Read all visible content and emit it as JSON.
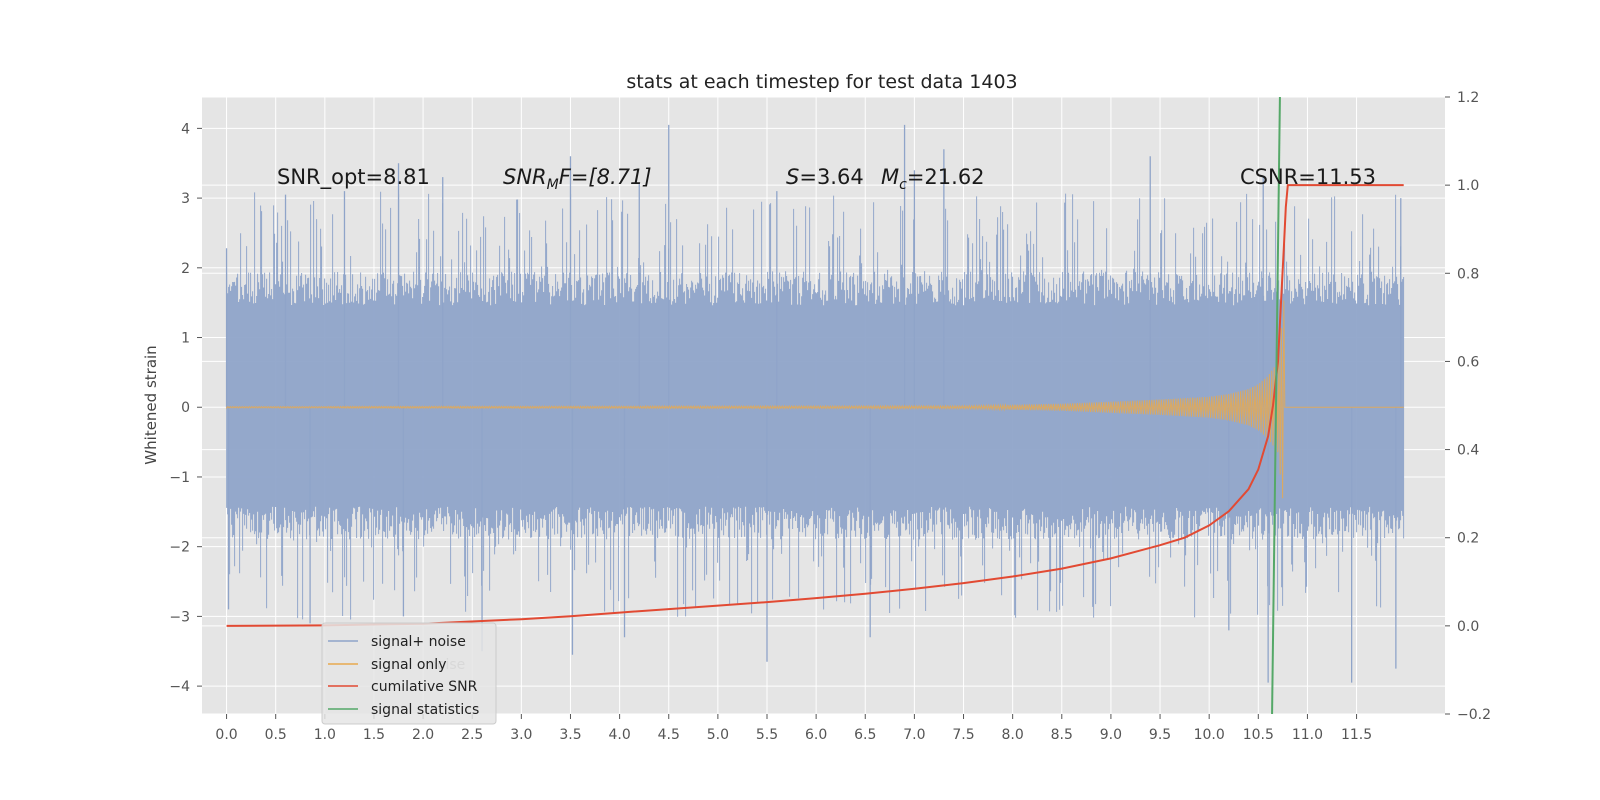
{
  "chart_data": {
    "type": "line",
    "title": "stats at each timestep for test data 1403",
    "ylabel": "Whitened strain",
    "xlim": [
      -0.25,
      12.4
    ],
    "ylim": [
      -4.4,
      4.45
    ],
    "y2lim": [
      -0.2,
      1.2
    ],
    "grid": true,
    "x_ticks": [
      "0.0",
      "0.5",
      "1.0",
      "1.5",
      "2.0",
      "2.5",
      "3.0",
      "3.5",
      "4.0",
      "4.5",
      "5.0",
      "5.5",
      "6.0",
      "6.5",
      "7.0",
      "7.5",
      "8.0",
      "8.5",
      "9.0",
      "9.5",
      "10.0",
      "10.5",
      "11.0",
      "11.5"
    ],
    "x_tick_values": [
      0,
      0.5,
      1,
      1.5,
      2,
      2.5,
      3,
      3.5,
      4,
      4.5,
      5,
      5.5,
      6,
      6.5,
      7,
      7.5,
      8,
      8.5,
      9,
      9.5,
      10,
      10.5,
      11,
      11.5
    ],
    "y_ticks": [
      "−4",
      "−3",
      "−2",
      "−1",
      "0",
      "1",
      "2",
      "3",
      "4"
    ],
    "y_tick_values": [
      -4,
      -3,
      -2,
      -1,
      0,
      1,
      2,
      3,
      4
    ],
    "y2_ticks": [
      "−0.2",
      "0.0",
      "0.2",
      "0.4",
      "0.6",
      "0.8",
      "1.0",
      "1.2"
    ],
    "y2_tick_values": [
      -0.2,
      0,
      0.2,
      0.4,
      0.6,
      0.8,
      1.0,
      1.2
    ],
    "annotations": {
      "snr_opt": "SNR_opt=8.81",
      "snr_mf_name": "SNR",
      "snr_mf_sub": "M",
      "snr_mf_rest": "F=[8.71]",
      "s_name": "S",
      "s_value": "=3.64",
      "mc_name": "M",
      "mc_sub": "c",
      "mc_value": "=21.62",
      "csnr": "CSNR=11.53"
    },
    "legend": {
      "placement": "lower-left",
      "entries": [
        "signal+ noise",
        "signal only",
        "cumilative SNR",
        "signal statistics"
      ],
      "ghost_text": "noise"
    },
    "series": [
      {
        "name": "signal+ noise",
        "axis": "left",
        "color": "#8fa4c9",
        "x_range": [
          0,
          11.98
        ],
        "band_typical": [
          -1.9,
          1.95
        ],
        "spikes": [
          {
            "x": 0.0,
            "y": 2.28
          },
          {
            "x": 0.02,
            "y": -2.9
          },
          {
            "x": 0.6,
            "y": 3.05
          },
          {
            "x": 0.85,
            "y": -3.1
          },
          {
            "x": 1.2,
            "y": 3.1
          },
          {
            "x": 1.75,
            "y": 3.5
          },
          {
            "x": 1.8,
            "y": -3.0
          },
          {
            "x": 2.2,
            "y": 3.3
          },
          {
            "x": 2.6,
            "y": -3.5
          },
          {
            "x": 3.5,
            "y": 3.6
          },
          {
            "x": 3.52,
            "y": -3.55
          },
          {
            "x": 4.05,
            "y": -3.3
          },
          {
            "x": 4.2,
            "y": 3.2
          },
          {
            "x": 4.5,
            "y": 4.05
          },
          {
            "x": 5.5,
            "y": -3.65
          },
          {
            "x": 5.6,
            "y": 3.1
          },
          {
            "x": 6.55,
            "y": -3.3
          },
          {
            "x": 6.9,
            "y": 4.05
          },
          {
            "x": 7.0,
            "y": 3.4
          },
          {
            "x": 7.3,
            "y": 3.7
          },
          {
            "x": 9.4,
            "y": 3.6
          },
          {
            "x": 10.2,
            "y": -3.2
          },
          {
            "x": 10.55,
            "y": 3.3
          },
          {
            "x": 10.6,
            "y": -3.95
          },
          {
            "x": 11.45,
            "y": -3.95
          },
          {
            "x": 11.9,
            "y": -3.75
          },
          {
            "x": 11.95,
            "y": 3.0
          }
        ]
      },
      {
        "name": "signal only",
        "axis": "left",
        "color": "#e8a94f",
        "envelope_x": [
          0,
          7.5,
          8.5,
          9.0,
          9.5,
          10.0,
          10.2,
          10.4,
          10.5,
          10.6,
          10.7,
          10.75,
          10.77
        ],
        "envelope_amp": [
          0.01,
          0.02,
          0.05,
          0.08,
          0.11,
          0.15,
          0.19,
          0.26,
          0.33,
          0.45,
          0.65,
          1.35,
          1.75
        ]
      },
      {
        "name": "cumilative SNR",
        "axis": "right",
        "color": "#e24a33",
        "x": [
          0,
          1,
          2,
          3,
          3.5,
          4,
          4.5,
          5,
          5.5,
          6,
          6.5,
          7,
          7.5,
          8,
          8.5,
          9,
          9.5,
          9.75,
          10,
          10.2,
          10.4,
          10.5,
          10.6,
          10.65,
          10.7,
          10.73,
          10.76,
          10.78,
          10.8,
          11.0,
          11.5,
          11.98
        ],
        "y": [
          0.0,
          0.001,
          0.005,
          0.015,
          0.022,
          0.03,
          0.038,
          0.046,
          0.054,
          0.063,
          0.073,
          0.084,
          0.097,
          0.112,
          0.13,
          0.153,
          0.183,
          0.2,
          0.228,
          0.26,
          0.31,
          0.355,
          0.43,
          0.5,
          0.6,
          0.73,
          0.86,
          0.95,
          1.0,
          1.0,
          1.0,
          1.0
        ]
      },
      {
        "name": "signal statistics",
        "axis": "right",
        "color": "#55a868",
        "x": [
          10.64,
          10.72
        ],
        "y": [
          -0.2,
          1.2
        ]
      }
    ]
  },
  "colors": {
    "plot_bg": "#e5e5e5",
    "grid": "#ffffff",
    "noise": "#8fa4c9",
    "signal": "#e8a94f",
    "csnr": "#e24a33",
    "stat": "#55a868",
    "legend_bg": "#e5e5e5",
    "legend_border": "#cccccc"
  }
}
